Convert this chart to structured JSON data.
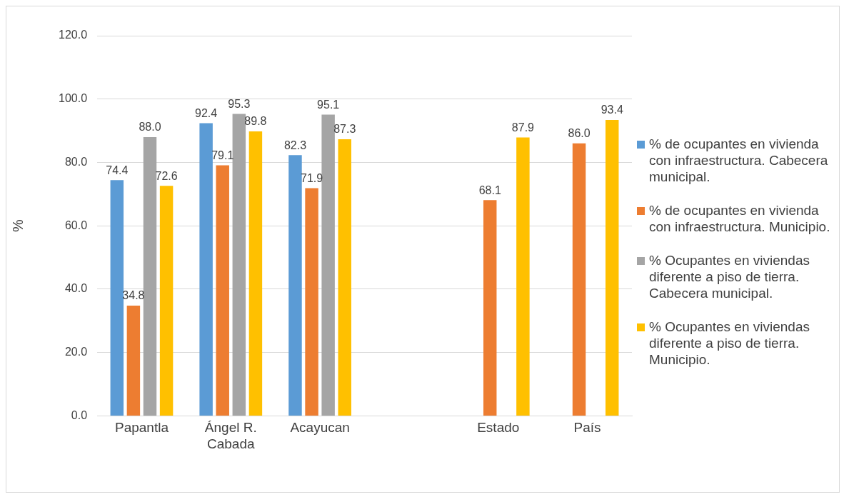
{
  "chart_data": {
    "type": "bar",
    "ylabel": "%",
    "categories": [
      "Papantla",
      "Ángel R. Cabada",
      "Acayucan",
      null,
      "Estado",
      "País"
    ],
    "series": [
      {
        "name": "% de ocupantes en vivienda con infraestructura. Cabecera municipal.",
        "color": "#5b9bd5",
        "values": [
          74.4,
          92.4,
          82.3,
          null,
          null,
          null
        ],
        "value_labels": [
          "74.4",
          "92.4",
          "82.3",
          null,
          null,
          null
        ]
      },
      {
        "name": "% de ocupantes en vivienda con infraestructura. Municipio.",
        "color": "#ed7d31",
        "values": [
          34.8,
          79.1,
          71.9,
          null,
          68.1,
          86.0
        ],
        "value_labels": [
          "34.8",
          "79.1",
          "71.9",
          null,
          "68.1",
          "86.0"
        ]
      },
      {
        "name": "% Ocupantes en viviendas diferente a piso de tierra. Cabecera municipal.",
        "color": "#a5a5a5",
        "values": [
          88.0,
          95.3,
          95.1,
          null,
          null,
          null
        ],
        "value_labels": [
          "88.0",
          "95.3",
          "95.1",
          null,
          null,
          null
        ]
      },
      {
        "name": "% Ocupantes en viviendas diferente a piso de tierra. Municipio.",
        "color": "#ffc000",
        "values": [
          72.6,
          89.8,
          87.3,
          null,
          87.9,
          93.4
        ],
        "value_labels": [
          "72.6",
          "89.8",
          "87.3",
          null,
          "87.9",
          "93.4"
        ]
      }
    ],
    "ylim": [
      0,
      120
    ],
    "yticks": [
      {
        "value": 0,
        "label": "0.0"
      },
      {
        "value": 20,
        "label": "20.0"
      },
      {
        "value": 40,
        "label": "40.0"
      },
      {
        "value": 60,
        "label": "60.0"
      },
      {
        "value": 80,
        "label": "80.0"
      },
      {
        "value": 100,
        "label": "100.0"
      },
      {
        "value": 120,
        "label": "120.0"
      }
    ],
    "grid": "y",
    "legend": "right"
  }
}
